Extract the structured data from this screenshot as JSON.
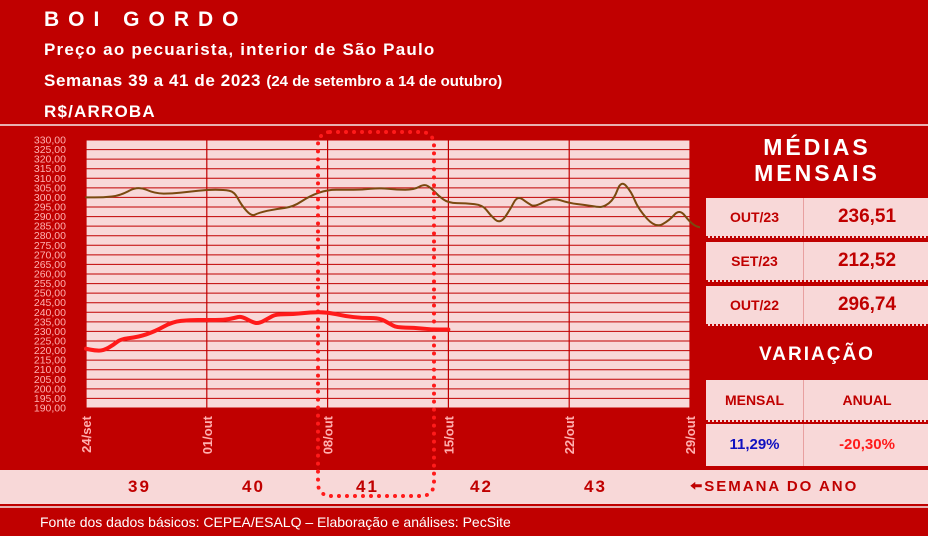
{
  "header": {
    "title": "BOI GORDO",
    "subtitle1": "Preço ao pecuarista, interior de São Paulo",
    "subtitle2_main": "Semanas 39 a 41 de 2023",
    "subtitle2_paren": "(24 de setembro a 14 de outubro)",
    "subtitle3": "R$/ARROBA"
  },
  "chart_data": {
    "type": "line",
    "ylim": [
      190,
      330
    ],
    "yticks": [
      "330,00",
      "325,00",
      "320,00",
      "315,00",
      "310,00",
      "305,00",
      "300,00",
      "295,00",
      "290,00",
      "285,00",
      "280,00",
      "275,00",
      "270,00",
      "265,00",
      "260,00",
      "255,00",
      "250,00",
      "245,00",
      "240,00",
      "235,00",
      "230,00",
      "225,00",
      "220,00",
      "215,00",
      "210,00",
      "205,00",
      "200,00",
      "195,00",
      "190,00"
    ],
    "xticks": [
      "24/set",
      "01/out",
      "08/out",
      "15/out",
      "22/out",
      "29/out"
    ],
    "x_days": [
      0,
      7,
      14,
      21,
      28,
      35
    ],
    "series": [
      {
        "color": "#7a4a10",
        "values": [
          [
            0,
            300
          ],
          [
            1,
            300
          ],
          [
            2,
            301
          ],
          [
            3,
            306
          ],
          [
            4,
            302
          ],
          [
            5,
            302
          ],
          [
            6,
            303
          ],
          [
            7,
            304
          ],
          [
            8,
            304
          ],
          [
            8.6,
            303
          ],
          [
            9,
            296
          ],
          [
            9.6,
            290
          ],
          [
            10,
            292
          ],
          [
            11,
            294
          ],
          [
            12,
            295
          ],
          [
            13,
            301
          ],
          [
            14,
            304
          ],
          [
            15,
            304
          ],
          [
            16,
            304
          ],
          [
            17,
            305
          ],
          [
            18,
            304
          ],
          [
            19,
            304
          ],
          [
            19.6,
            307
          ],
          [
            20,
            305
          ],
          [
            20.4,
            301
          ],
          [
            21,
            297
          ],
          [
            22,
            297
          ],
          [
            23,
            296
          ],
          [
            23.4,
            291
          ],
          [
            24,
            286
          ],
          [
            24.6,
            294
          ],
          [
            25,
            301
          ],
          [
            25.6,
            297
          ],
          [
            26,
            295
          ],
          [
            27,
            300
          ],
          [
            28,
            297
          ],
          [
            29,
            296
          ],
          [
            29.6,
            295
          ],
          [
            30,
            295
          ],
          [
            30.6,
            299
          ],
          [
            31,
            309
          ],
          [
            31.6,
            303
          ],
          [
            32,
            294
          ],
          [
            33,
            284
          ],
          [
            33.8,
            288
          ],
          [
            34.4,
            294
          ],
          [
            35,
            287
          ],
          [
            35.5,
            284
          ],
          [
            36,
            285
          ]
        ]
      },
      {
        "color": "#ff1a1a",
        "values": [
          [
            0,
            221
          ],
          [
            0.5,
            220
          ],
          [
            1,
            220
          ],
          [
            1.6,
            223
          ],
          [
            2,
            226
          ],
          [
            3,
            227
          ],
          [
            4,
            230
          ],
          [
            5,
            235
          ],
          [
            6,
            236
          ],
          [
            7,
            236
          ],
          [
            8,
            236
          ],
          [
            8.6,
            237
          ],
          [
            9,
            238
          ],
          [
            9.6,
            235
          ],
          [
            10,
            234
          ],
          [
            10.6,
            237
          ],
          [
            11,
            239
          ],
          [
            12,
            239
          ],
          [
            13,
            240
          ],
          [
            14,
            240
          ],
          [
            15,
            238
          ],
          [
            16,
            237
          ],
          [
            17,
            237
          ],
          [
            17.6,
            234
          ],
          [
            18,
            232
          ],
          [
            19,
            232
          ],
          [
            20,
            231
          ],
          [
            21,
            231
          ]
        ]
      }
    ]
  },
  "right_panel": {
    "medias_title_line1": "MÉDIAS",
    "medias_title_line2": "MENSAIS",
    "rows": [
      {
        "label": "OUT/23",
        "value": "236,51"
      },
      {
        "label": "SET/23",
        "value": "212,52"
      },
      {
        "label": "OUT/22",
        "value": "296,74"
      }
    ],
    "variacao_title": "VARIAÇÃO",
    "mensal_label": "MENSAL",
    "anual_label": "ANUAL",
    "mensal_value": "11,29%",
    "anual_value": "-20,30%",
    "mensal_color": "#1010c0",
    "anual_color": "#ff1a1a"
  },
  "weeks": [
    "39",
    "40",
    "41",
    "42",
    "43"
  ],
  "weeks_label": "SEMANA DO ANO",
  "footer": "Fonte dos dados básicos: CEPEA/ESALQ – Elaboração e análises: PecSite"
}
